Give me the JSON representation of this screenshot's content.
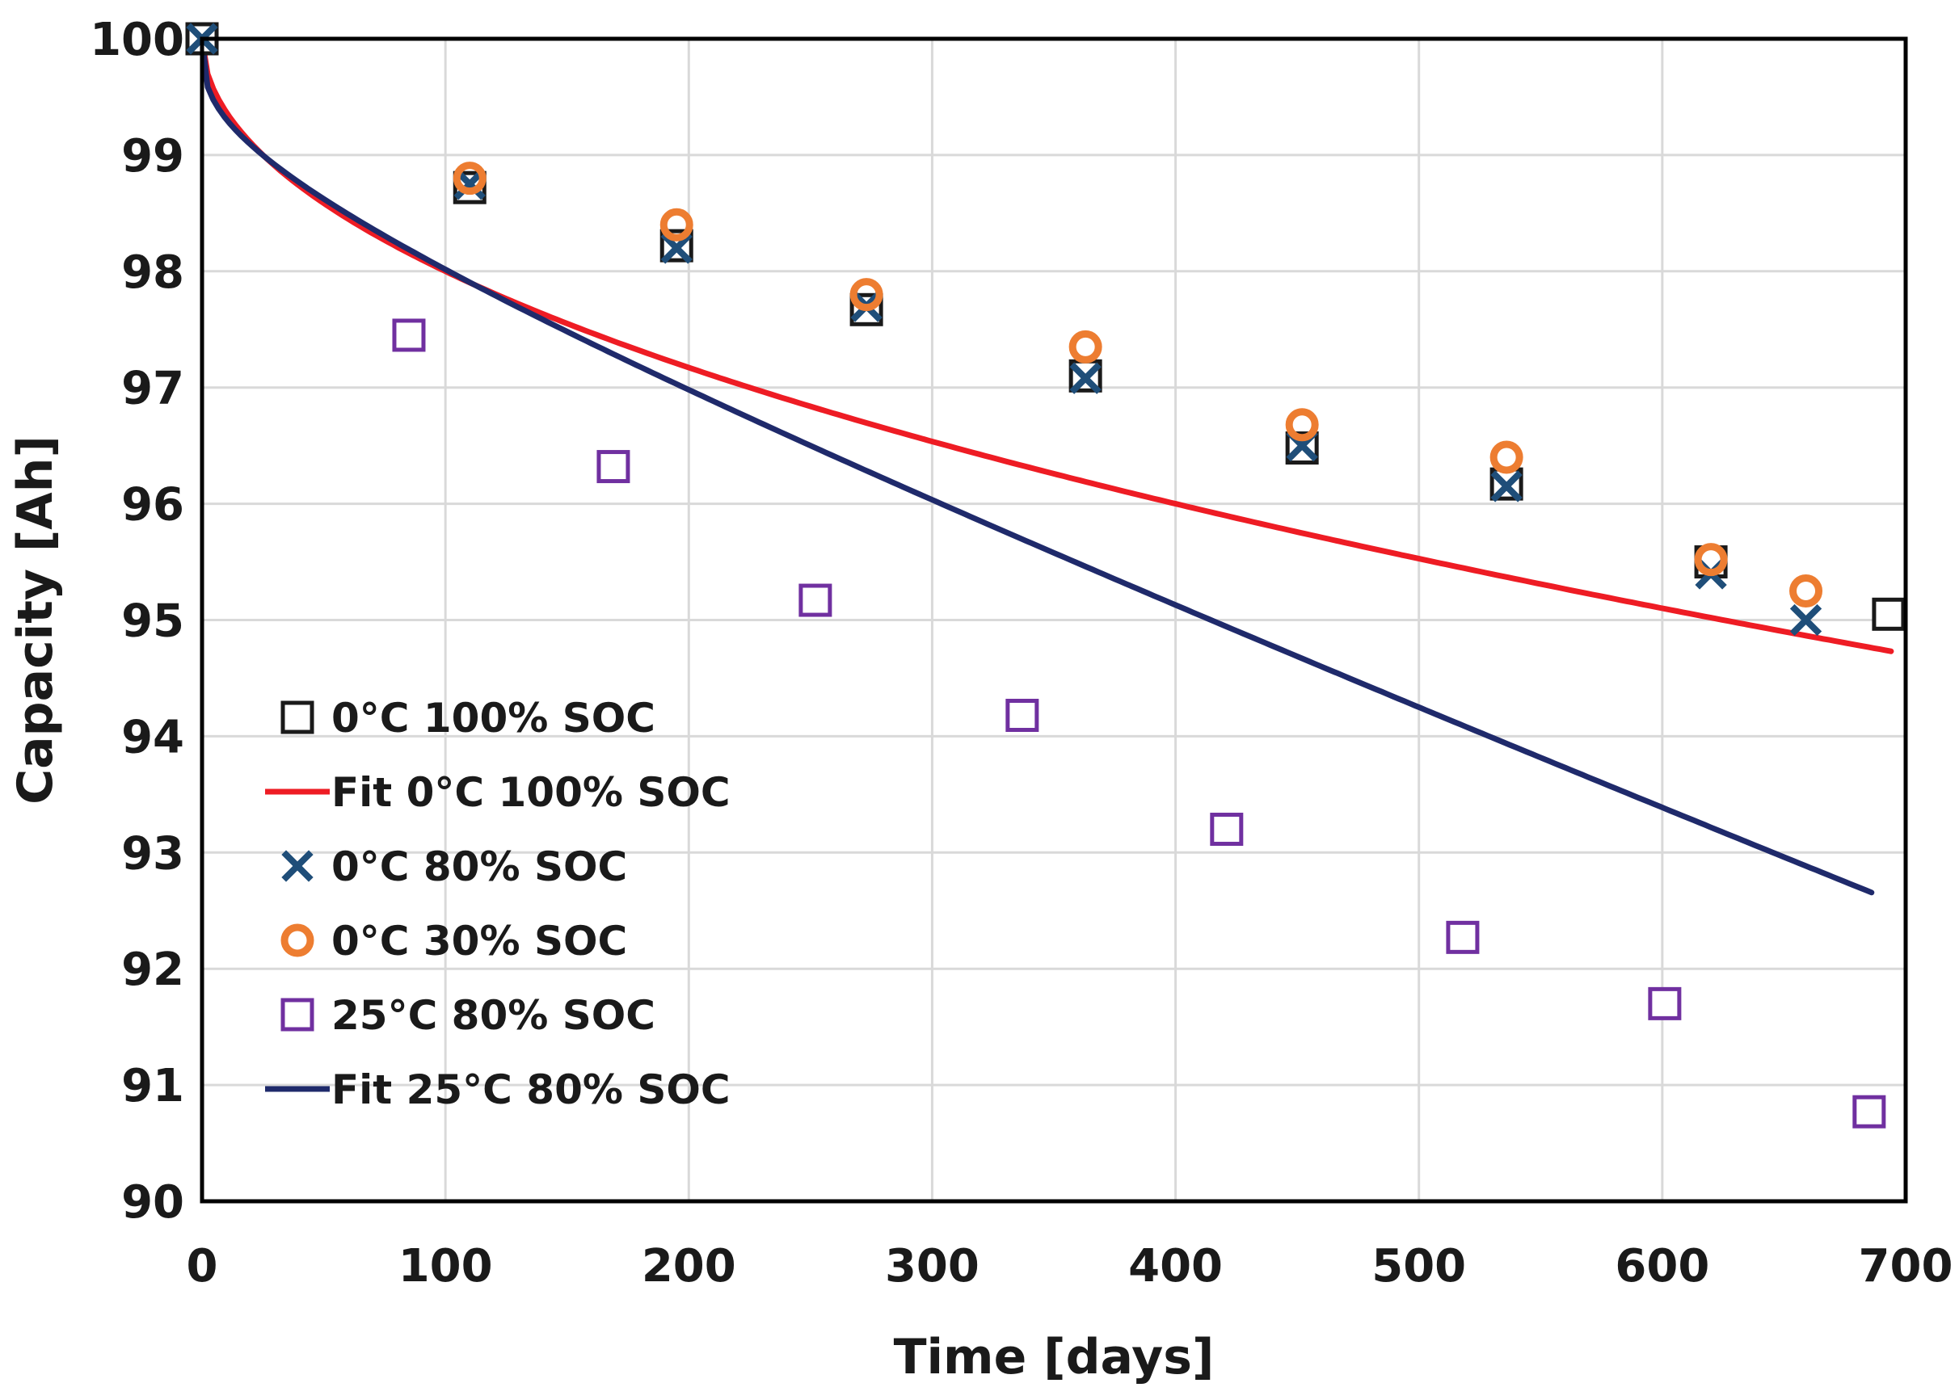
{
  "chart_data": {
    "type": "scatter",
    "xlabel": "Time [days]",
    "ylabel": "Capacity [Ah]",
    "xlim": [
      0,
      700
    ],
    "ylim": [
      90,
      100
    ],
    "xticks": [
      "0",
      "100",
      "200",
      "300",
      "400",
      "500",
      "600",
      "700"
    ],
    "yticks": [
      "90",
      "91",
      "92",
      "93",
      "94",
      "95",
      "96",
      "97",
      "98",
      "99",
      "100"
    ],
    "grid": true,
    "legend_position": "lower-left",
    "series": [
      {
        "name": "0°C 100% SOC",
        "kind": "marker",
        "marker": "square",
        "color": "#1a1a1a",
        "points": [
          [
            0,
            100
          ],
          [
            110,
            98.72
          ],
          [
            195,
            98.22
          ],
          [
            273,
            97.67
          ],
          [
            363,
            97.1
          ],
          [
            452,
            96.48
          ],
          [
            536,
            96.17
          ],
          [
            620,
            95.5
          ],
          [
            693,
            95.05
          ]
        ]
      },
      {
        "name": "Fit 0°C 100% SOC",
        "kind": "line",
        "color": "#ee1c24",
        "model": {
          "a": 0.2,
          "b": 0.5
        },
        "x_range": [
          0,
          694
        ]
      },
      {
        "name": "0°C 80% SOC",
        "kind": "marker",
        "marker": "x",
        "color": "#1f4e79",
        "points": [
          [
            0,
            100
          ],
          [
            110,
            98.75
          ],
          [
            195,
            98.2
          ],
          [
            273,
            97.7
          ],
          [
            363,
            97.08
          ],
          [
            452,
            96.5
          ],
          [
            536,
            96.15
          ],
          [
            620,
            95.4
          ],
          [
            659,
            95.0
          ]
        ]
      },
      {
        "name": "0°C 30% SOC",
        "kind": "marker",
        "marker": "circle",
        "color": "#ed7d31",
        "points": [
          [
            110,
            98.8
          ],
          [
            195,
            98.4
          ],
          [
            273,
            97.8
          ],
          [
            363,
            97.35
          ],
          [
            452,
            96.68
          ],
          [
            536,
            96.4
          ],
          [
            620,
            95.52
          ],
          [
            659,
            95.25
          ]
        ]
      },
      {
        "name": "25°C 80% SOC",
        "kind": "marker",
        "marker": "square",
        "color": "#7030a0",
        "points": [
          [
            0,
            100
          ],
          [
            85,
            97.45
          ],
          [
            169,
            96.32
          ],
          [
            252,
            95.17
          ],
          [
            337,
            94.18
          ],
          [
            421,
            93.2
          ],
          [
            518,
            92.27
          ],
          [
            601,
            91.7
          ],
          [
            685,
            90.77
          ]
        ]
      },
      {
        "name": "Fit 25°C 80% SOC",
        "kind": "line",
        "color": "#1f2a6b",
        "model": {
          "a": 0.31,
          "b": 0.3,
          "c": 0.0075
        },
        "x_range": [
          0,
          686
        ]
      }
    ]
  }
}
